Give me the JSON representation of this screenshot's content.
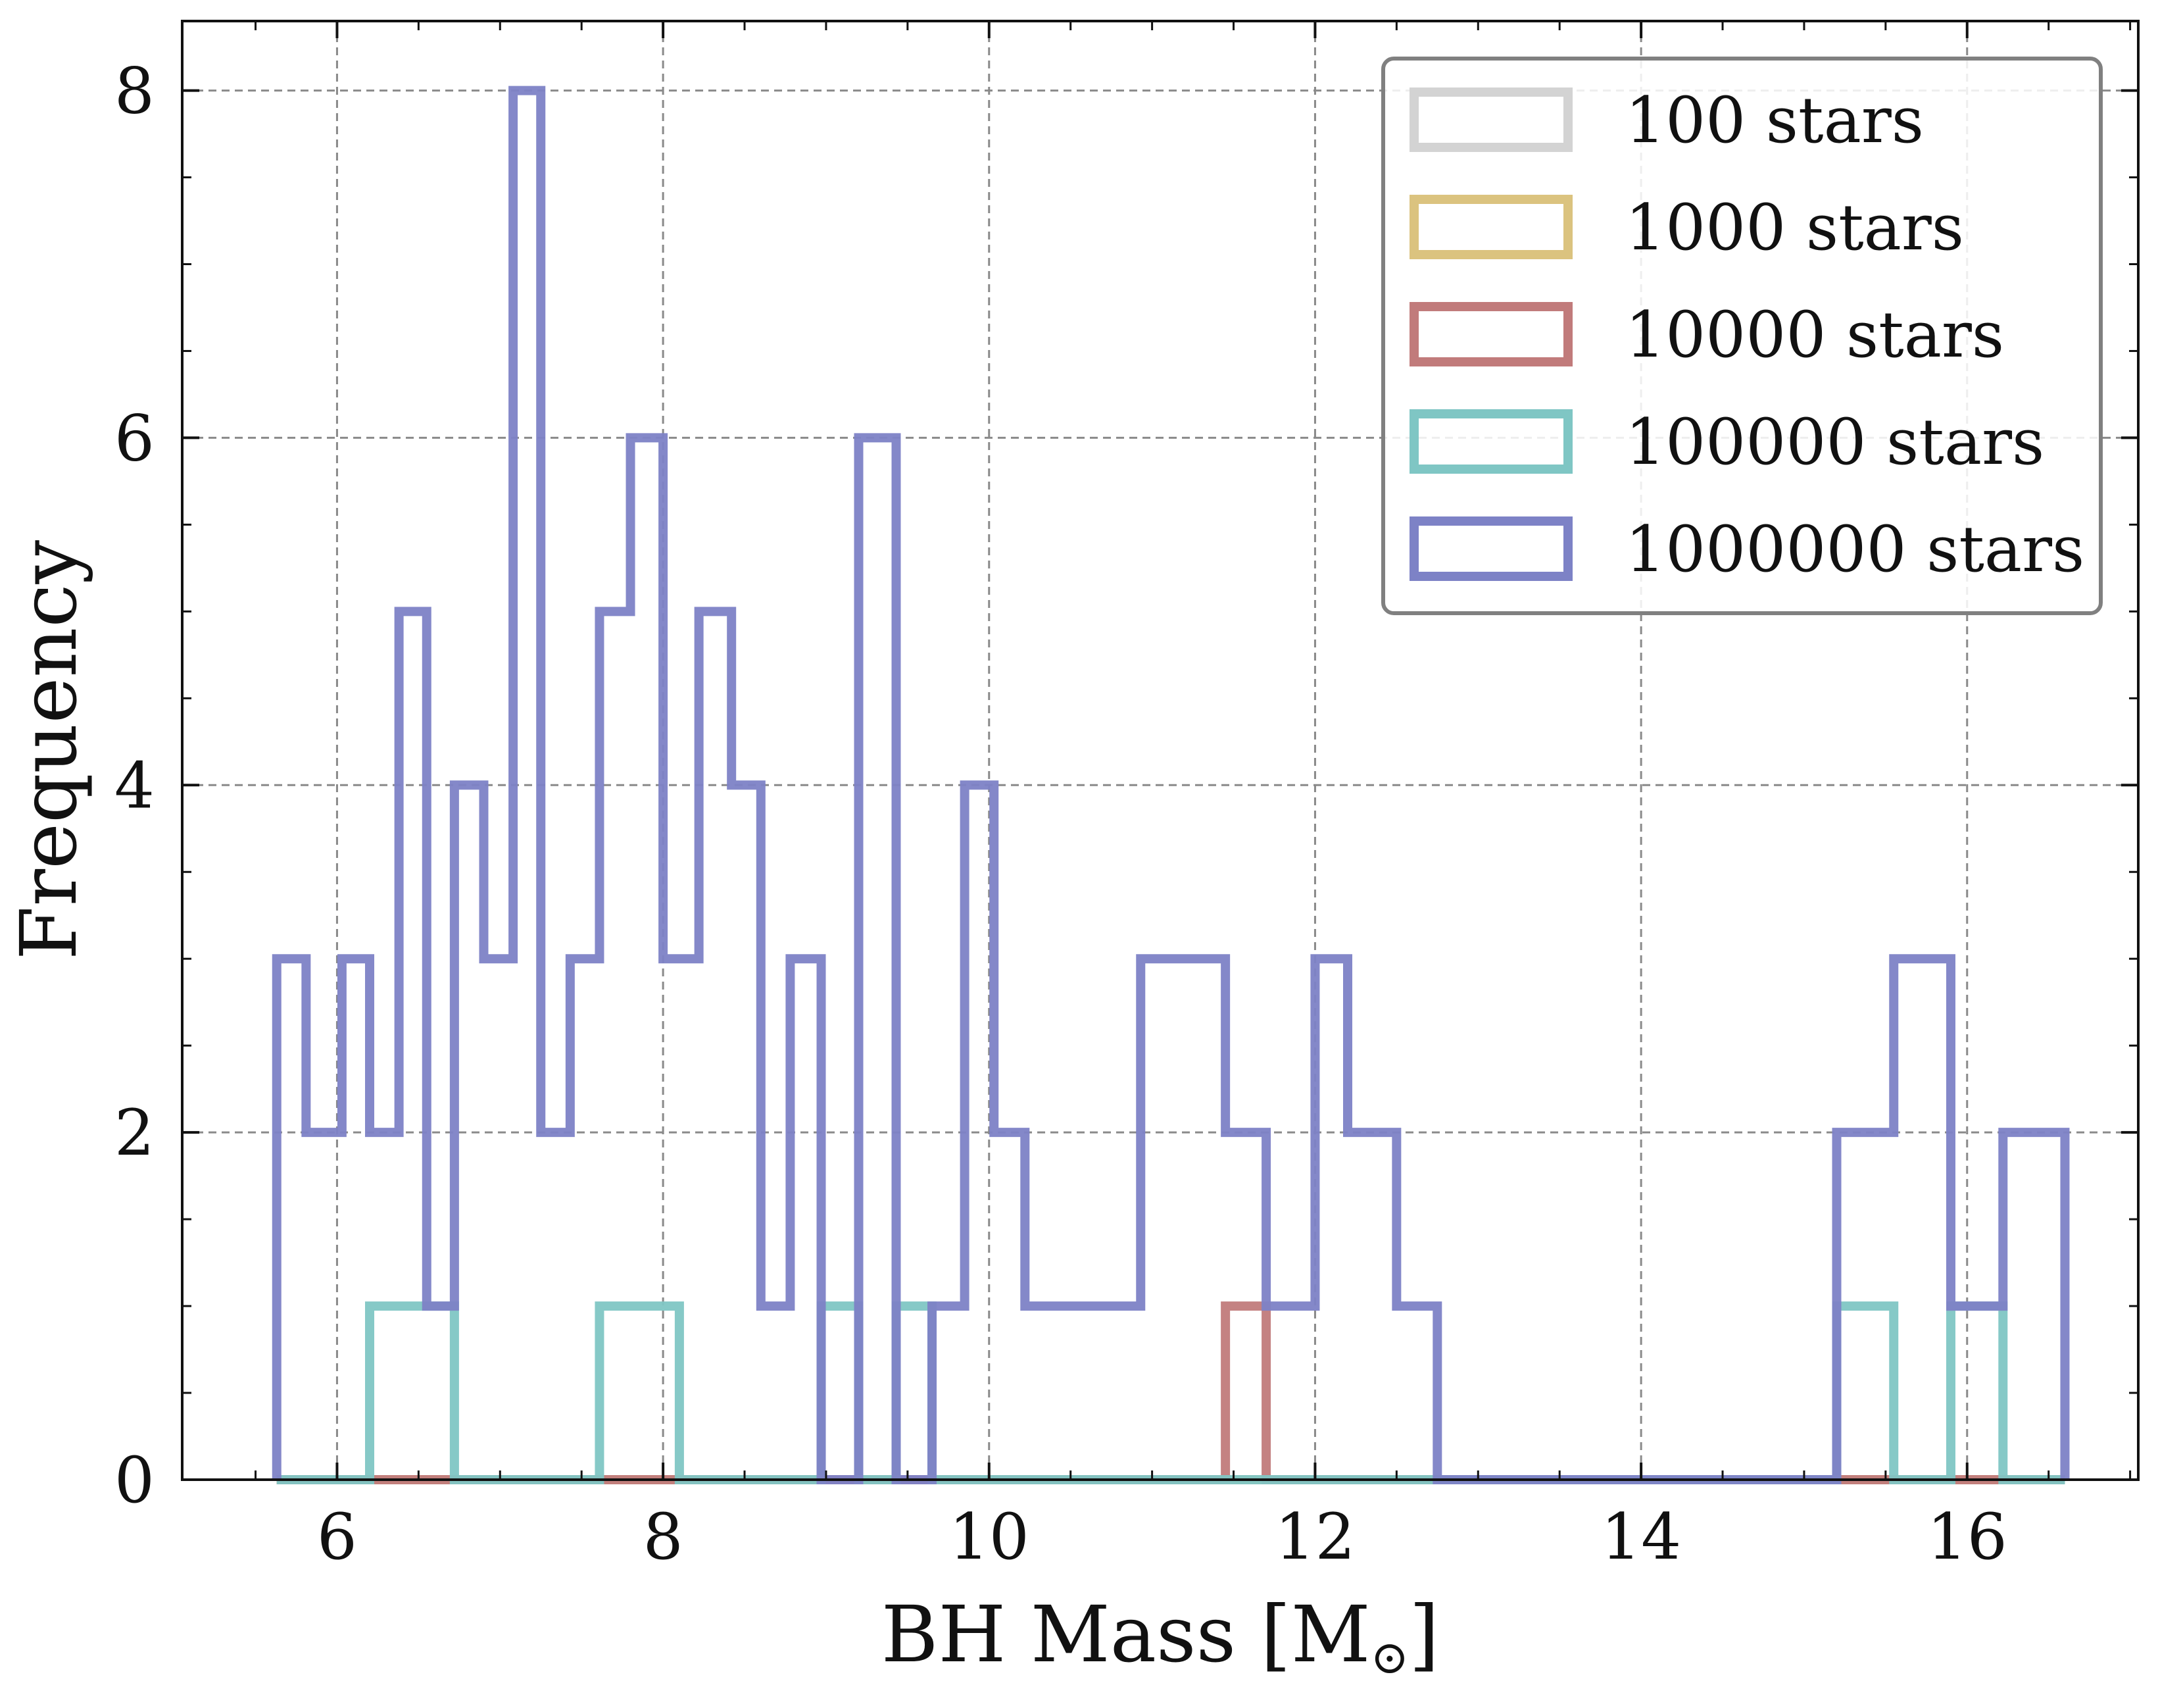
{
  "chart_data": {
    "type": "histogram",
    "xlabel": "BH Mass [M",
    "xlabel_sub": "⊙",
    "xlabel_close": "]",
    "ylabel": "Frequency",
    "xlim": [
      5.05,
      17.05
    ],
    "ylim": [
      0,
      8.4
    ],
    "x_ticks": [
      6,
      8,
      10,
      12,
      14,
      16
    ],
    "x_tick_labels": [
      "6",
      "8",
      "10",
      "12",
      "14",
      "16"
    ],
    "y_ticks": [
      0,
      2,
      4,
      6,
      8
    ],
    "y_tick_labels": [
      "0",
      "2",
      "4",
      "6",
      "8"
    ],
    "grid": true,
    "legend_position": "top-right",
    "bin_edges": [
      5.63,
      5.81,
      6.03,
      6.2,
      6.38,
      6.55,
      6.72,
      6.9,
      7.08,
      7.25,
      7.43,
      7.61,
      7.8,
      8.0,
      8.1,
      8.22,
      8.42,
      8.6,
      8.78,
      8.97,
      9.2,
      9.43,
      9.65,
      9.85,
      10.03,
      10.22,
      10.93,
      11.45,
      11.7,
      12.0,
      12.2,
      12.5,
      12.75,
      13.0,
      13.33,
      15.2,
      15.55,
      15.9,
      16.22,
      16.6
    ],
    "series": [
      {
        "name": "100 stars",
        "color": "#d3d3d3",
        "values": [
          0,
          0,
          0,
          0,
          0,
          0,
          0,
          0,
          0,
          0,
          0,
          0,
          0,
          0,
          0,
          0,
          0,
          0,
          0,
          0,
          0,
          0,
          0,
          0,
          0,
          0,
          0,
          0,
          0,
          0,
          0,
          0,
          0,
          0,
          0,
          0,
          0,
          0,
          0
        ]
      },
      {
        "name": "1000 stars",
        "color": "#dbc37f",
        "values": [
          0,
          0,
          0,
          0,
          0,
          0,
          0,
          0,
          0,
          0,
          0,
          0,
          0,
          0,
          0,
          0,
          0,
          0,
          0,
          0,
          0,
          0,
          0,
          0,
          0,
          0,
          0,
          0,
          0,
          0,
          0,
          0,
          0,
          0,
          0,
          0,
          0,
          0,
          0
        ]
      },
      {
        "name": "10000 stars",
        "color": "#c17b7b",
        "values": [
          0,
          0,
          0,
          0,
          0,
          0,
          0,
          0,
          0,
          0,
          0,
          0,
          0,
          0,
          0,
          0,
          0,
          0,
          0,
          0,
          0,
          0,
          0,
          0,
          0,
          0,
          0,
          1,
          0,
          0,
          0,
          0,
          0,
          0,
          0,
          0,
          0,
          0,
          0
        ]
      },
      {
        "name": "100000 stars",
        "color": "#7fc6c4",
        "values": [
          0,
          0,
          0,
          1,
          1,
          1,
          0,
          0,
          0,
          0,
          0,
          1,
          1,
          1,
          0,
          0,
          0,
          0,
          0,
          1,
          0,
          1,
          0,
          0,
          0,
          0,
          0,
          0,
          0,
          0,
          0,
          0,
          0,
          0,
          0,
          1,
          0,
          1,
          0
        ]
      },
      {
        "name": "1000000 stars",
        "color": "#7d82c6",
        "values": [
          3,
          2,
          3,
          2,
          5,
          1,
          4,
          3,
          8,
          2,
          3,
          5,
          6,
          3,
          3,
          5,
          4,
          1,
          3,
          0,
          6,
          0,
          1,
          4,
          2,
          1,
          3,
          2,
          1,
          3,
          2,
          1,
          0,
          0,
          0,
          2,
          3,
          1,
          2
        ]
      }
    ]
  }
}
